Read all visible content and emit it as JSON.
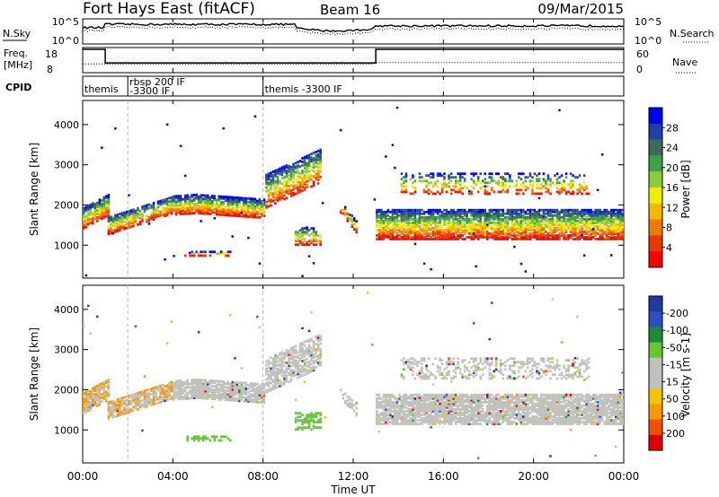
{
  "chart_data": {
    "type": "heatmap",
    "header": {
      "station": "Fort Hays East (fitACF)",
      "beam": "Beam 16",
      "date": "09/Mar/2015"
    },
    "time_axis": {
      "label": "Time UT",
      "range_hours": [
        0,
        24
      ],
      "ticks": [
        "00:00",
        "04:00",
        "08:00",
        "12:00",
        "16:00",
        "20:00",
        "00:00"
      ]
    },
    "nsky_panel": {
      "left_label": "N.Sky",
      "right_label": "N.Search",
      "left_ticks": [
        "10^5",
        "10^0"
      ],
      "right_ticks": [
        "10^5",
        "10^0"
      ]
    },
    "freq_panel": {
      "left_label_lines": [
        "Freq.",
        "[MHz]"
      ],
      "right_label": "Nave",
      "left_ticks": [
        "18",
        "8"
      ],
      "right_ticks": [
        "60",
        "0"
      ],
      "freq_segments": [
        {
          "start_h": 0.0,
          "end_h": 1.0,
          "mhz": 18
        },
        {
          "start_h": 1.0,
          "end_h": 13.0,
          "mhz": 11.7
        },
        {
          "start_h": 13.0,
          "end_h": 24.0,
          "mhz": 18
        }
      ]
    },
    "cpid_panel": {
      "label": "CPID",
      "entries": [
        {
          "start_h": 0.0,
          "lines": [
            "themis"
          ]
        },
        {
          "start_h": 2.0,
          "lines": [
            "rbsp 200 IF",
            "-3300 IF"
          ]
        },
        {
          "start_h": 8.0,
          "lines": [
            "themis -3300 IF"
          ]
        }
      ]
    },
    "power_panel": {
      "ylabel": "Slant Range [km]",
      "yticks": [
        1000,
        2000,
        3000,
        4000
      ],
      "yrange": [
        180,
        4600
      ],
      "colorbar_label": "Power [dB]",
      "colorbar_ticks": [
        "4",
        "8",
        "12",
        "16",
        "20",
        "24",
        "28"
      ],
      "colors": [
        "#0000ff",
        "#1f40a8",
        "#3a6e55",
        "#3fa04a",
        "#8ecb3c",
        "#f0ee00",
        "#f5b800",
        "#f07a00",
        "#e83a00",
        "#ff0000"
      ]
    },
    "velocity_panel": {
      "ylabel": "Slant Range [km]",
      "yticks": [
        1000,
        2000,
        3000,
        4000
      ],
      "yrange": [
        180,
        4600
      ],
      "colorbar_label": "Velocity [m s-1]",
      "colorbar_ticks": [
        "200",
        "100",
        "50",
        "15",
        "-15",
        "-50",
        "-100",
        "-200"
      ],
      "colors": [
        "#1f3aa0",
        "#2a4fc4",
        "#1e8a3a",
        "#66c830",
        "#c0c0bc",
        "#c0c0bc",
        "#f3c400",
        "#f59a00",
        "#f05000",
        "#e00000"
      ]
    }
  }
}
